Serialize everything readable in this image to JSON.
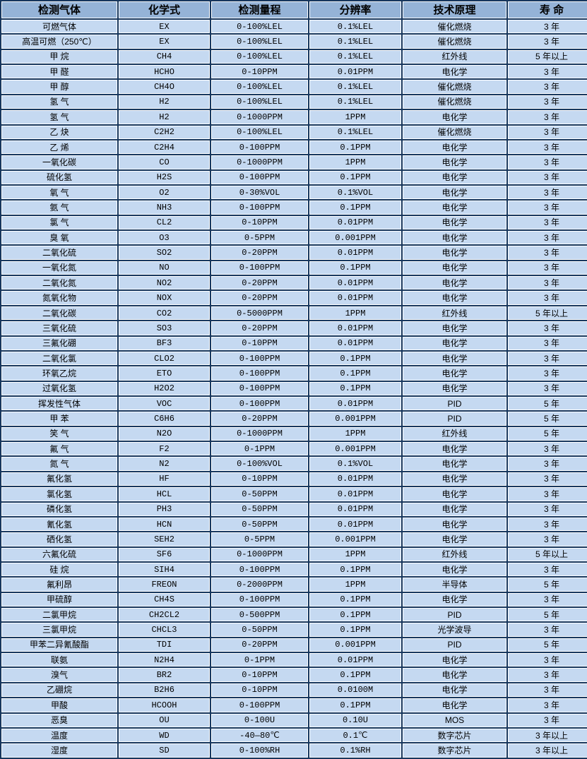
{
  "colors": {
    "header_bg": "#95B3D7",
    "cell_bg": "#C5D9F1",
    "grid_line": "#17375E",
    "white_line": "#FFFFFF",
    "text": "#000000"
  },
  "table": {
    "columns": [
      "检测气体",
      "化学式",
      "检测量程",
      "分辨率",
      "技术原理",
      "寿 命"
    ],
    "rows": [
      [
        "可燃气体",
        "EX",
        "0-100%LEL",
        "0.1%LEL",
        "催化燃烧",
        "3 年"
      ],
      [
        "高温可燃（250℃）",
        "EX",
        "0-100%LEL",
        "0.1%LEL",
        "催化燃烧",
        "3 年"
      ],
      [
        "甲 烷",
        "CH4",
        "0-100%LEL",
        "0.1%LEL",
        "红外线",
        "5 年以上"
      ],
      [
        "甲 醛",
        "HCHO",
        "0-10PPM",
        "0.01PPM",
        "电化学",
        "3 年"
      ],
      [
        "甲 醇",
        "CH4O",
        "0-100%LEL",
        "0.1%LEL",
        "催化燃烧",
        "3 年"
      ],
      [
        "氢 气",
        "H2",
        "0-100%LEL",
        "0.1%LEL",
        "催化燃烧",
        "3 年"
      ],
      [
        "氢 气",
        "H2",
        "0-1000PPM",
        "1PPM",
        "电化学",
        "3 年"
      ],
      [
        "乙 炔",
        "C2H2",
        "0-100%LEL",
        "0.1%LEL",
        "催化燃烧",
        "3 年"
      ],
      [
        "乙 烯",
        "C2H4",
        "0-100PPM",
        "0.1PPM",
        "电化学",
        "3 年"
      ],
      [
        "一氧化碳",
        "CO",
        "0-1000PPM",
        "1PPM",
        "电化学",
        "3 年"
      ],
      [
        "硫化氢",
        "H2S",
        "0-100PPM",
        "0.1PPM",
        "电化学",
        "3 年"
      ],
      [
        "氧 气",
        "O2",
        "0-30%VOL",
        "0.1%VOL",
        "电化学",
        "3 年"
      ],
      [
        "氨 气",
        "NH3",
        "0-100PPM",
        "0.1PPM",
        "电化学",
        "3 年"
      ],
      [
        "氯 气",
        "CL2",
        "0-10PPM",
        "0.01PPM",
        "电化学",
        "3 年"
      ],
      [
        "臭 氧",
        "O3",
        "0-5PPM",
        "0.001PPM",
        "电化学",
        "3 年"
      ],
      [
        "二氧化硫",
        "SO2",
        "0-20PPM",
        "0.01PPM",
        "电化学",
        "3 年"
      ],
      [
        "一氧化氮",
        "NO",
        "0-100PPM",
        "0.1PPM",
        "电化学",
        "3 年"
      ],
      [
        "二氧化氮",
        "NO2",
        "0-20PPM",
        "0.01PPM",
        "电化学",
        "3 年"
      ],
      [
        "氮氧化物",
        "NOX",
        "0-20PPM",
        "0.01PPM",
        "电化学",
        "3 年"
      ],
      [
        "二氧化碳",
        "CO2",
        "0-5000PPM",
        "1PPM",
        "红外线",
        "5 年以上"
      ],
      [
        "三氧化硫",
        "SO3",
        "0-20PPM",
        "0.01PPM",
        "电化学",
        "3 年"
      ],
      [
        "三氟化硼",
        "BF3",
        "0-10PPM",
        "0.01PPM",
        "电化学",
        "3 年"
      ],
      [
        "二氧化氯",
        "CLO2",
        "0-100PPM",
        "0.1PPM",
        "电化学",
        "3 年"
      ],
      [
        "环氧乙烷",
        "ETO",
        "0-100PPM",
        "0.1PPM",
        "电化学",
        "3 年"
      ],
      [
        "过氧化氢",
        "H2O2",
        "0-100PPM",
        "0.1PPM",
        "电化学",
        "3 年"
      ],
      [
        "挥发性气体",
        "VOC",
        "0-100PPM",
        "0.01PPM",
        "PID",
        "5 年"
      ],
      [
        "甲 苯",
        "C6H6",
        "0-20PPM",
        "0.001PPM",
        "PID",
        "5 年"
      ],
      [
        "笑 气",
        "N2O",
        "0-1000PPM",
        "1PPM",
        "红外线",
        "5 年"
      ],
      [
        "氟 气",
        "F2",
        "0-1PPM",
        "0.001PPM",
        "电化学",
        "3 年"
      ],
      [
        "氮 气",
        "N2",
        "0-100%VOL",
        "0.1%VOL",
        "电化学",
        "3 年"
      ],
      [
        "氟化氢",
        "HF",
        "0-10PPM",
        "0.01PPM",
        "电化学",
        "3 年"
      ],
      [
        "氯化氢",
        "HCL",
        "0-50PPM",
        "0.01PPM",
        "电化学",
        "3 年"
      ],
      [
        "磷化氢",
        "PH3",
        "0-50PPM",
        "0.01PPM",
        "电化学",
        "3 年"
      ],
      [
        "氰化氢",
        "HCN",
        "0-50PPM",
        "0.01PPM",
        "电化学",
        "3 年"
      ],
      [
        "硒化氢",
        "SEH2",
        "0-5PPM",
        "0.001PPM",
        "电化学",
        "3 年"
      ],
      [
        "六氟化硫",
        "SF6",
        "0-1000PPM",
        "1PPM",
        "红外线",
        "5 年以上"
      ],
      [
        "硅 烷",
        "SIH4",
        "0-100PPM",
        "0.1PPM",
        "电化学",
        "3 年"
      ],
      [
        "氟利昂",
        "FREON",
        "0-2000PPM",
        "1PPM",
        "半导体",
        "5 年"
      ],
      [
        "甲硫醇",
        "CH4S",
        "0-100PPM",
        "0.1PPM",
        "电化学",
        "3 年"
      ],
      [
        "二氯甲烷",
        "CH2CL2",
        "0-500PPM",
        "0.1PPM",
        "PID",
        "5 年"
      ],
      [
        "三氯甲烷",
        "CHCL3",
        "0-50PPM",
        "0.1PPM",
        "光学波导",
        "3 年"
      ],
      [
        "甲苯二异氰酸酯",
        "TDI",
        "0-20PPM",
        "0.001PPM",
        "PID",
        "5 年"
      ],
      [
        "联氨",
        "N2H4",
        "0-1PPM",
        "0.01PPM",
        "电化学",
        "3 年"
      ],
      [
        "溴气",
        "BR2",
        "0-10PPM",
        "0.1PPM",
        "电化学",
        "3 年"
      ],
      [
        "乙硼烷",
        "B2H6",
        "0-10PPM",
        "0.0100M",
        "电化学",
        "3 年"
      ],
      [
        "甲酸",
        "HCOOH",
        "0-100PPM",
        "0.1PPM",
        "电化学",
        "3 年"
      ],
      [
        "恶臭",
        "OU",
        "0-100U",
        "0.10U",
        "MOS",
        "3 年"
      ],
      [
        "温度",
        "WD",
        "-40—80℃",
        "0.1℃",
        "数字芯片",
        "3 年以上"
      ],
      [
        "湿度",
        "SD",
        "0-100%RH",
        "0.1%RH",
        "数字芯片",
        "3 年以上"
      ]
    ]
  }
}
